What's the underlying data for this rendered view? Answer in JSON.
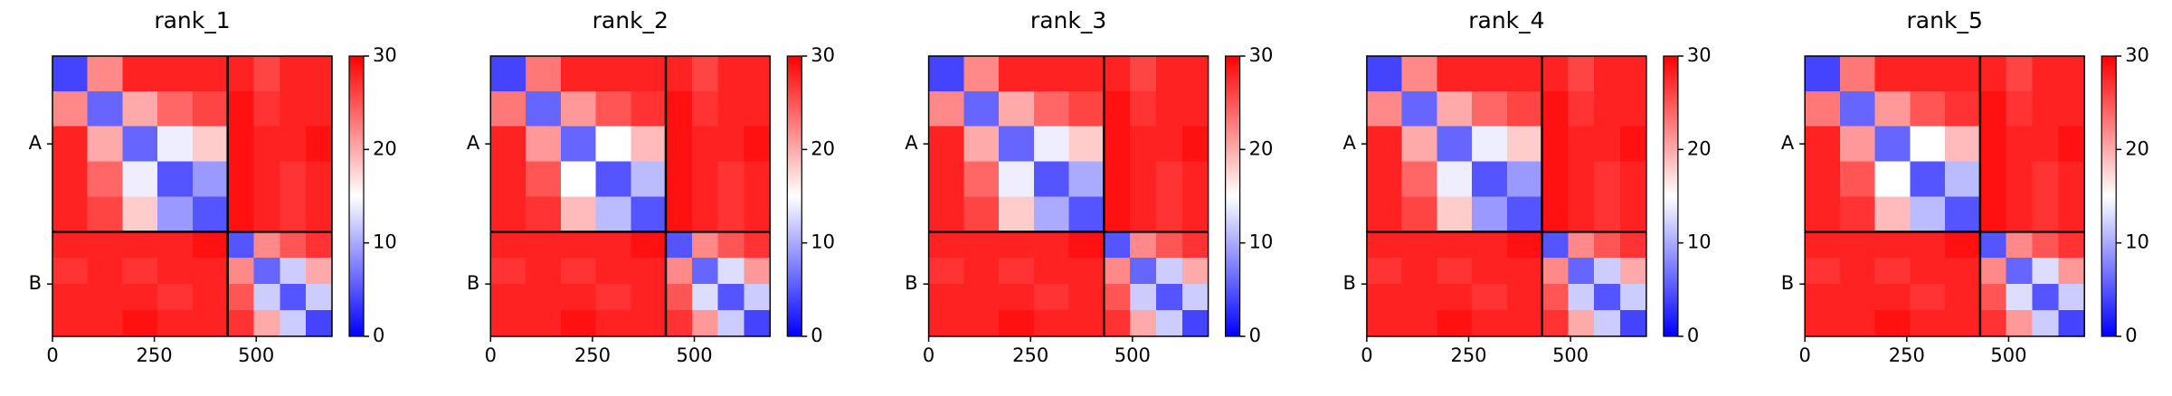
{
  "chart_data": [
    {
      "type": "heatmap",
      "title": "rank_1",
      "colormap": "bwr",
      "bins": [
        0,
        86,
        172,
        258,
        344,
        430,
        494,
        558,
        622,
        686
      ],
      "xlim": [
        0,
        686
      ],
      "xticks": [
        0,
        250,
        500
      ],
      "yticks": [
        {
          "value": 215,
          "label": "A"
        },
        {
          "value": 558,
          "label": "B"
        }
      ],
      "chain_break": 430,
      "clim": [
        0,
        30
      ],
      "cticks": [
        0,
        10,
        20,
        30
      ],
      "values": [
        [
          4,
          22,
          28,
          28,
          28,
          28,
          26,
          28,
          28
        ],
        [
          22,
          6,
          20,
          24,
          26,
          29,
          27,
          28,
          28
        ],
        [
          28,
          20,
          6,
          14,
          18,
          29,
          28,
          28,
          29
        ],
        [
          28,
          24,
          14,
          5,
          9,
          29,
          28,
          27,
          28
        ],
        [
          28,
          26,
          18,
          9,
          5,
          29,
          28,
          27,
          28
        ],
        [
          28,
          28,
          28,
          28,
          29,
          5,
          22,
          25,
          27
        ],
        [
          27,
          28,
          27,
          28,
          28,
          22,
          6,
          12,
          20
        ],
        [
          28,
          28,
          28,
          27,
          28,
          25,
          12,
          5,
          12
        ],
        [
          28,
          28,
          29,
          28,
          28,
          27,
          20,
          12,
          4
        ]
      ]
    },
    {
      "type": "heatmap",
      "title": "rank_2",
      "colormap": "bwr",
      "bins": [
        0,
        86,
        172,
        258,
        344,
        430,
        494,
        558,
        622,
        686
      ],
      "xlim": [
        0,
        686
      ],
      "xticks": [
        0,
        250,
        500
      ],
      "yticks": [
        {
          "value": 215,
          "label": "A"
        },
        {
          "value": 558,
          "label": "B"
        }
      ],
      "chain_break": 430,
      "clim": [
        0,
        30
      ],
      "cticks": [
        0,
        10,
        20,
        30
      ],
      "values": [
        [
          4,
          23,
          28,
          28,
          28,
          28,
          26,
          28,
          28
        ],
        [
          23,
          6,
          21,
          25,
          27,
          29,
          27,
          28,
          28
        ],
        [
          28,
          21,
          6,
          15,
          19,
          29,
          28,
          28,
          29
        ],
        [
          28,
          25,
          15,
          5,
          11,
          29,
          28,
          27,
          28
        ],
        [
          28,
          27,
          19,
          11,
          5,
          29,
          28,
          27,
          28
        ],
        [
          28,
          28,
          28,
          28,
          29,
          5,
          22,
          25,
          27
        ],
        [
          27,
          28,
          27,
          28,
          28,
          22,
          6,
          13,
          21
        ],
        [
          28,
          28,
          28,
          27,
          28,
          25,
          13,
          5,
          12
        ],
        [
          28,
          28,
          29,
          28,
          28,
          27,
          21,
          12,
          4
        ]
      ]
    },
    {
      "type": "heatmap",
      "title": "rank_3",
      "colormap": "bwr",
      "bins": [
        0,
        86,
        172,
        258,
        344,
        430,
        494,
        558,
        622,
        686
      ],
      "xlim": [
        0,
        686
      ],
      "xticks": [
        0,
        250,
        500
      ],
      "yticks": [
        {
          "value": 215,
          "label": "A"
        },
        {
          "value": 558,
          "label": "B"
        }
      ],
      "chain_break": 430,
      "clim": [
        0,
        30
      ],
      "cticks": [
        0,
        10,
        20,
        30
      ],
      "values": [
        [
          4,
          22,
          28,
          28,
          28,
          28,
          26,
          28,
          28
        ],
        [
          22,
          6,
          20,
          24,
          26,
          29,
          27,
          28,
          28
        ],
        [
          28,
          20,
          6,
          14,
          18,
          29,
          28,
          28,
          29
        ],
        [
          28,
          24,
          14,
          5,
          10,
          29,
          28,
          27,
          28
        ],
        [
          28,
          26,
          18,
          10,
          5,
          29,
          28,
          27,
          28
        ],
        [
          28,
          28,
          28,
          28,
          29,
          5,
          22,
          25,
          27
        ],
        [
          27,
          28,
          27,
          28,
          28,
          22,
          6,
          12,
          20
        ],
        [
          28,
          28,
          28,
          27,
          28,
          25,
          12,
          5,
          12
        ],
        [
          28,
          28,
          29,
          28,
          28,
          27,
          20,
          12,
          4
        ]
      ]
    },
    {
      "type": "heatmap",
      "title": "rank_4",
      "colormap": "bwr",
      "bins": [
        0,
        86,
        172,
        258,
        344,
        430,
        494,
        558,
        622,
        686
      ],
      "xlim": [
        0,
        686
      ],
      "xticks": [
        0,
        250,
        500
      ],
      "yticks": [
        {
          "value": 215,
          "label": "A"
        },
        {
          "value": 558,
          "label": "B"
        }
      ],
      "chain_break": 430,
      "clim": [
        0,
        30
      ],
      "cticks": [
        0,
        10,
        20,
        30
      ],
      "values": [
        [
          4,
          22,
          28,
          28,
          28,
          28,
          26,
          28,
          28
        ],
        [
          22,
          6,
          20,
          24,
          26,
          29,
          27,
          28,
          28
        ],
        [
          28,
          20,
          6,
          14,
          18,
          29,
          28,
          28,
          29
        ],
        [
          28,
          24,
          14,
          5,
          9,
          29,
          28,
          27,
          28
        ],
        [
          28,
          26,
          18,
          9,
          5,
          29,
          28,
          27,
          28
        ],
        [
          28,
          28,
          28,
          28,
          29,
          5,
          22,
          25,
          27
        ],
        [
          27,
          28,
          27,
          28,
          28,
          22,
          6,
          12,
          20
        ],
        [
          28,
          28,
          28,
          27,
          28,
          25,
          12,
          5,
          12
        ],
        [
          28,
          28,
          29,
          28,
          28,
          27,
          20,
          12,
          4
        ]
      ]
    },
    {
      "type": "heatmap",
      "title": "rank_5",
      "colormap": "bwr",
      "bins": [
        0,
        86,
        172,
        258,
        344,
        430,
        494,
        558,
        622,
        686
      ],
      "xlim": [
        0,
        686
      ],
      "xticks": [
        0,
        250,
        500
      ],
      "yticks": [
        {
          "value": 215,
          "label": "A"
        },
        {
          "value": 558,
          "label": "B"
        }
      ],
      "chain_break": 430,
      "clim": [
        0,
        30
      ],
      "cticks": [
        0,
        10,
        20,
        30
      ],
      "values": [
        [
          4,
          23,
          28,
          28,
          28,
          28,
          26,
          28,
          28
        ],
        [
          23,
          6,
          21,
          25,
          27,
          29,
          27,
          28,
          28
        ],
        [
          28,
          21,
          6,
          15,
          19,
          29,
          28,
          28,
          29
        ],
        [
          28,
          25,
          15,
          5,
          11,
          29,
          28,
          27,
          28
        ],
        [
          28,
          27,
          19,
          11,
          5,
          29,
          28,
          27,
          28
        ],
        [
          28,
          28,
          28,
          28,
          29,
          5,
          22,
          25,
          27
        ],
        [
          27,
          28,
          27,
          28,
          28,
          22,
          6,
          13,
          21
        ],
        [
          28,
          28,
          28,
          27,
          28,
          25,
          13,
          5,
          12
        ],
        [
          28,
          28,
          29,
          28,
          28,
          27,
          21,
          12,
          4
        ]
      ]
    }
  ]
}
